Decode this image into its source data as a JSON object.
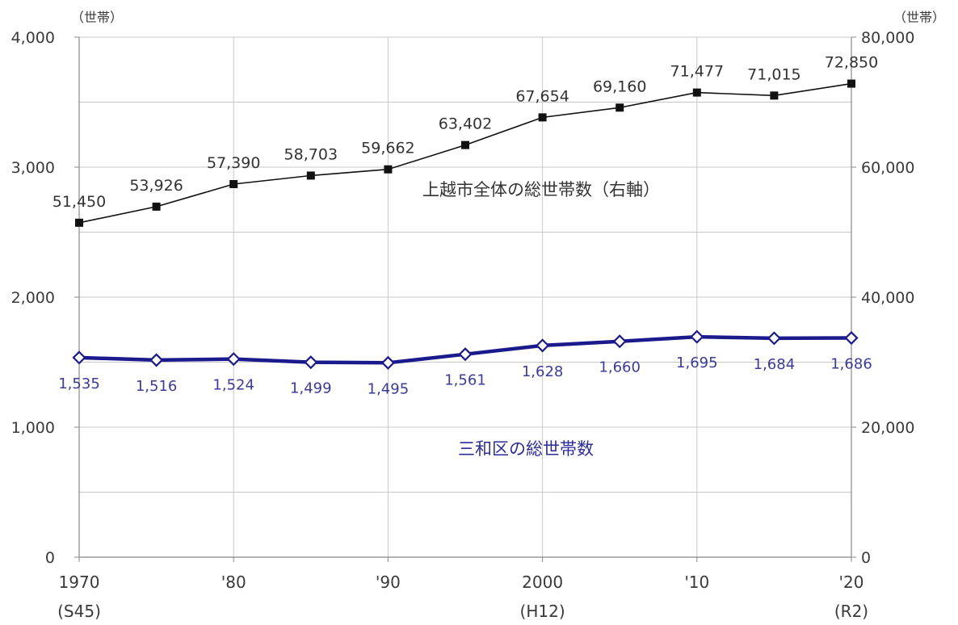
{
  "chart_data": {
    "type": "line",
    "left_axis_unit": "（世帯）",
    "right_axis_unit": "（世帯）",
    "y_left_range": [
      0,
      4000
    ],
    "y_left_ticks": [
      "0",
      "1,000",
      "2,000",
      "3,000",
      "4,000"
    ],
    "y_right_range": [
      0,
      80000
    ],
    "y_right_ticks": [
      "0",
      "20,000",
      "40,000",
      "60,000",
      "80,000"
    ],
    "x": [
      1970,
      1975,
      1980,
      1985,
      1990,
      1995,
      2000,
      2005,
      2010,
      2015,
      2020
    ],
    "x_tick_labels": [
      {
        "x": 1970,
        "line1": "1970",
        "line2": "(S45)"
      },
      {
        "x": 1980,
        "line1": "'80",
        "line2": ""
      },
      {
        "x": 1990,
        "line1": "'90",
        "line2": ""
      },
      {
        "x": 2000,
        "line1": "2000",
        "line2": "(H12)"
      },
      {
        "x": 2010,
        "line1": "'10",
        "line2": ""
      },
      {
        "x": 2020,
        "line1": "'20",
        "line2": "(R2)"
      }
    ],
    "grid": true,
    "series": [
      {
        "name": "上越市全体の総世帯数（右軸）",
        "axis": "right",
        "color": "#111111",
        "marker": "filled-square",
        "values": [
          51450,
          53926,
          57390,
          58703,
          59662,
          63402,
          67654,
          69160,
          71477,
          71015,
          72850
        ],
        "labels": [
          "51,450",
          "53,926",
          "57,390",
          "58,703",
          "59,662",
          "63,402",
          "67,654",
          "69,160",
          "71,477",
          "71,015",
          "72,850"
        ]
      },
      {
        "name": "三和区の総世帯数",
        "axis": "left",
        "color": "#1a1a8c",
        "marker": "open-diamond",
        "values": [
          1535,
          1516,
          1524,
          1499,
          1495,
          1561,
          1628,
          1660,
          1695,
          1684,
          1686
        ],
        "labels": [
          "1,535",
          "1,516",
          "1,524",
          "1,499",
          "1,495",
          "1,561",
          "1,628",
          "1,660",
          "1,695",
          "1,684",
          "1,686"
        ]
      }
    ]
  }
}
